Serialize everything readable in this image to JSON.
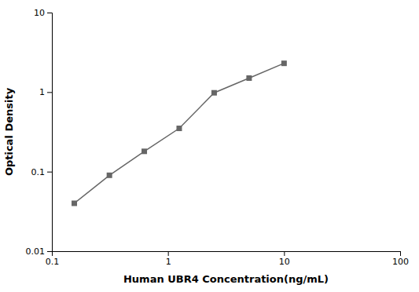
{
  "chart_data": {
    "type": "line",
    "x": [
      0.156,
      0.313,
      0.625,
      1.25,
      2.5,
      5.0,
      10.0
    ],
    "values": [
      0.04,
      0.09,
      0.18,
      0.35,
      0.98,
      1.5,
      2.3
    ],
    "color": "#666666",
    "marker": "square",
    "xlabel": "Human UBR4 Concentration(ng/mL)",
    "ylabel": "Optical Density",
    "xlim": [
      0.1,
      100
    ],
    "ylim": [
      0.01,
      10
    ],
    "xticks": [
      0.1,
      1,
      10,
      100
    ],
    "yticks": [
      0.01,
      0.1,
      1,
      10
    ],
    "log": true
  }
}
